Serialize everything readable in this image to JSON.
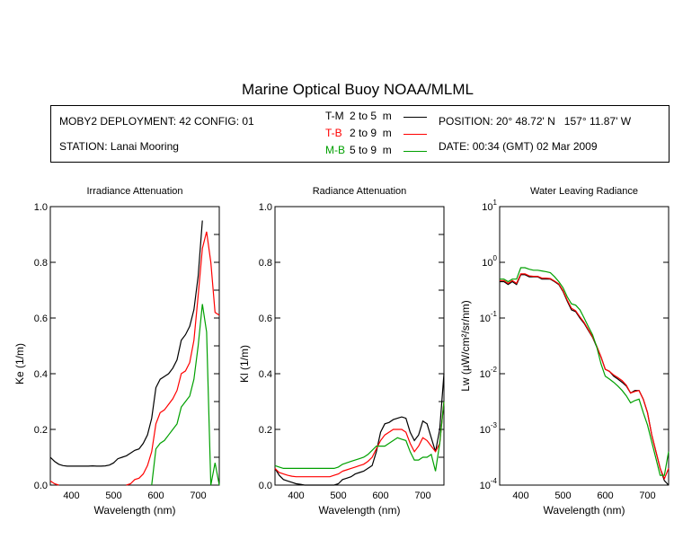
{
  "title": "Marine Optical Buoy NOAA/MLML",
  "info": {
    "deployment": "MOBY2 DEPLOYMENT: 42 CONFIG: 01",
    "station": "STATION: Lanai Mooring",
    "position": "POSITION: 20° 48.72' N   157° 11.87' W",
    "date": "DATE: 00:34 (GMT) 02 Mar 2009"
  },
  "legend": [
    {
      "name": "T-M",
      "range": "2 to 5  m",
      "color": "#000000"
    },
    {
      "name": "T-B",
      "range": "2 to 9  m",
      "color": "#ff0000"
    },
    {
      "name": "M-B",
      "range": "5 to 9  m",
      "color": "#00a000"
    }
  ],
  "chart_data": [
    {
      "type": "line",
      "title": "Irradiance Attenuation",
      "xlabel": "Wavelength (nm)",
      "ylabel": "Ke  (1/m)",
      "xlim": [
        350,
        750
      ],
      "ylim": [
        0,
        1.0
      ],
      "yscale": "linear",
      "xticks": [
        "400",
        "500",
        "600",
        "700"
      ],
      "yticks": [
        "0.0",
        "0.2",
        "0.4",
        "0.6",
        "0.8",
        "1.0"
      ],
      "x": [
        350,
        360,
        370,
        380,
        390,
        400,
        410,
        420,
        430,
        440,
        450,
        460,
        470,
        480,
        490,
        500,
        510,
        520,
        530,
        540,
        550,
        560,
        570,
        580,
        590,
        600,
        610,
        620,
        630,
        640,
        650,
        660,
        670,
        680,
        690,
        700,
        710,
        720,
        730,
        740,
        750
      ],
      "series": [
        {
          "name": "T-M",
          "values": [
            0.1,
            0.085,
            0.075,
            0.07,
            0.068,
            0.068,
            0.068,
            0.068,
            0.068,
            0.068,
            0.069,
            0.068,
            0.068,
            0.069,
            0.072,
            0.08,
            0.095,
            0.1,
            0.105,
            0.115,
            0.125,
            0.13,
            0.15,
            0.18,
            0.24,
            0.35,
            0.38,
            0.39,
            0.4,
            0.42,
            0.45,
            0.52,
            0.54,
            0.57,
            0.63,
            0.75,
            0.95,
            null,
            null,
            null,
            null
          ]
        },
        {
          "name": "T-B",
          "values": [
            0.015,
            0.005,
            0,
            null,
            null,
            null,
            null,
            null,
            null,
            null,
            null,
            null,
            null,
            null,
            null,
            null,
            null,
            null,
            0,
            0.005,
            0.02,
            0.025,
            0.04,
            0.07,
            0.12,
            0.22,
            0.26,
            0.27,
            0.29,
            0.31,
            0.34,
            0.4,
            0.41,
            0.44,
            0.52,
            0.68,
            0.85,
            0.91,
            0.8,
            0.62,
            0.61
          ]
        },
        {
          "name": "M-B",
          "values": [
            null,
            null,
            null,
            null,
            null,
            null,
            null,
            null,
            null,
            null,
            null,
            null,
            null,
            null,
            null,
            null,
            null,
            null,
            null,
            null,
            null,
            null,
            null,
            null,
            0,
            0.13,
            0.15,
            0.16,
            0.18,
            0.2,
            0.22,
            0.28,
            0.3,
            0.32,
            0.38,
            0.5,
            0.65,
            0.55,
            0,
            0.08,
            0
          ]
        }
      ]
    },
    {
      "type": "line",
      "title": "Radiance Attenuation",
      "xlabel": "Wavelength (nm)",
      "ylabel": "Kl  (1/m)",
      "xlim": [
        350,
        750
      ],
      "ylim": [
        0,
        1.0
      ],
      "yscale": "linear",
      "xticks": [
        "400",
        "500",
        "600",
        "700"
      ],
      "yticks": [
        "0.0",
        "0.2",
        "0.4",
        "0.6",
        "0.8",
        "1.0"
      ],
      "x": [
        350,
        360,
        370,
        380,
        390,
        400,
        410,
        420,
        430,
        440,
        450,
        460,
        470,
        480,
        490,
        500,
        510,
        520,
        530,
        540,
        550,
        560,
        570,
        580,
        590,
        600,
        610,
        620,
        630,
        640,
        650,
        660,
        670,
        680,
        690,
        700,
        710,
        720,
        730,
        740,
        750
      ],
      "series": [
        {
          "name": "T-M",
          "values": [
            0.06,
            0.035,
            0.02,
            0.015,
            0.01,
            0.005,
            0.003,
            0,
            0,
            0,
            0,
            0,
            0,
            0,
            0,
            0.005,
            0.02,
            0.025,
            0.03,
            0.04,
            0.045,
            0.05,
            0.06,
            0.07,
            0.12,
            0.19,
            0.22,
            0.225,
            0.235,
            0.24,
            0.245,
            0.24,
            0.19,
            0.16,
            0.18,
            0.23,
            0.22,
            0.17,
            0.12,
            0.2,
            0.4
          ]
        },
        {
          "name": "T-B",
          "values": [
            0.06,
            0.045,
            0.04,
            0.035,
            0.032,
            0.03,
            0.03,
            0.03,
            0.03,
            0.03,
            0.03,
            0.03,
            0.03,
            0.03,
            0.035,
            0.04,
            0.05,
            0.055,
            0.06,
            0.065,
            0.07,
            0.075,
            0.085,
            0.1,
            0.13,
            0.16,
            0.18,
            0.19,
            0.2,
            0.2,
            0.2,
            0.19,
            0.15,
            0.12,
            0.14,
            0.17,
            0.16,
            0.14,
            0.12,
            0.15,
            0.3
          ]
        },
        {
          "name": "M-B",
          "values": [
            0.07,
            0.065,
            0.06,
            0.06,
            0.06,
            0.06,
            0.06,
            0.06,
            0.06,
            0.06,
            0.06,
            0.06,
            0.06,
            0.06,
            0.06,
            0.065,
            0.075,
            0.08,
            0.085,
            0.09,
            0.095,
            0.1,
            0.11,
            0.125,
            0.14,
            0.14,
            0.14,
            0.15,
            0.16,
            0.17,
            0.165,
            0.16,
            0.12,
            0.09,
            0.09,
            0.1,
            0.1,
            0.11,
            0.05,
            0.15,
            0.3
          ]
        }
      ]
    },
    {
      "type": "line",
      "title": "Water Leaving Radiance",
      "xlabel": "Wavelength (nm)",
      "ylabel": "Lw  (µW/cm²/sr/nm)",
      "xlim": [
        350,
        750
      ],
      "ylim": [
        0.0001,
        10
      ],
      "yscale": "log",
      "xticks": [
        "400",
        "500",
        "600",
        "700"
      ],
      "yticks": [
        "-4",
        "-3",
        "-2",
        "-1",
        "0",
        "1"
      ],
      "x": [
        350,
        360,
        370,
        380,
        390,
        400,
        410,
        420,
        430,
        440,
        450,
        460,
        470,
        480,
        490,
        500,
        510,
        520,
        530,
        540,
        550,
        560,
        570,
        580,
        590,
        600,
        610,
        620,
        630,
        640,
        650,
        660,
        670,
        680,
        690,
        700,
        710,
        720,
        730,
        740,
        750
      ],
      "series": [
        {
          "name": "T-M",
          "values": [
            0.45,
            0.45,
            0.4,
            0.45,
            0.4,
            0.6,
            0.6,
            0.55,
            0.55,
            0.55,
            0.5,
            0.5,
            0.5,
            0.45,
            0.4,
            0.3,
            0.2,
            0.14,
            0.13,
            0.1,
            0.08,
            0.06,
            0.045,
            0.03,
            0.02,
            0.012,
            0.011,
            0.009,
            0.008,
            0.007,
            0.006,
            0.0045,
            0.005,
            0.005,
            0.0035,
            0.002,
            0.0008,
            0.0004,
            0.0002,
            0.00012,
            0.0001
          ]
        },
        {
          "name": "T-B",
          "values": [
            0.47,
            0.47,
            0.42,
            0.47,
            0.42,
            0.62,
            0.62,
            0.57,
            0.56,
            0.56,
            0.52,
            0.52,
            0.51,
            0.46,
            0.41,
            0.31,
            0.21,
            0.15,
            0.135,
            0.105,
            0.083,
            0.062,
            0.046,
            0.031,
            0.02,
            0.012,
            0.011,
            0.0095,
            0.0085,
            0.0075,
            0.0062,
            0.0045,
            0.0048,
            0.005,
            0.0035,
            0.002,
            0.0008,
            0.0004,
            0.0002,
            0.00013,
            0.0002
          ]
        },
        {
          "name": "M-B",
          "values": [
            0.5,
            0.5,
            0.45,
            0.5,
            0.5,
            0.8,
            0.8,
            0.75,
            0.72,
            0.72,
            0.7,
            0.68,
            0.65,
            0.55,
            0.45,
            0.35,
            0.24,
            0.18,
            0.17,
            0.14,
            0.1,
            0.07,
            0.05,
            0.03,
            0.015,
            0.009,
            0.008,
            0.007,
            0.006,
            0.005,
            0.004,
            0.003,
            0.0033,
            0.0035,
            0.002,
            0.0012,
            0.0006,
            0.0003,
            0.00015,
            0.00015,
            0.0004
          ]
        }
      ]
    }
  ]
}
